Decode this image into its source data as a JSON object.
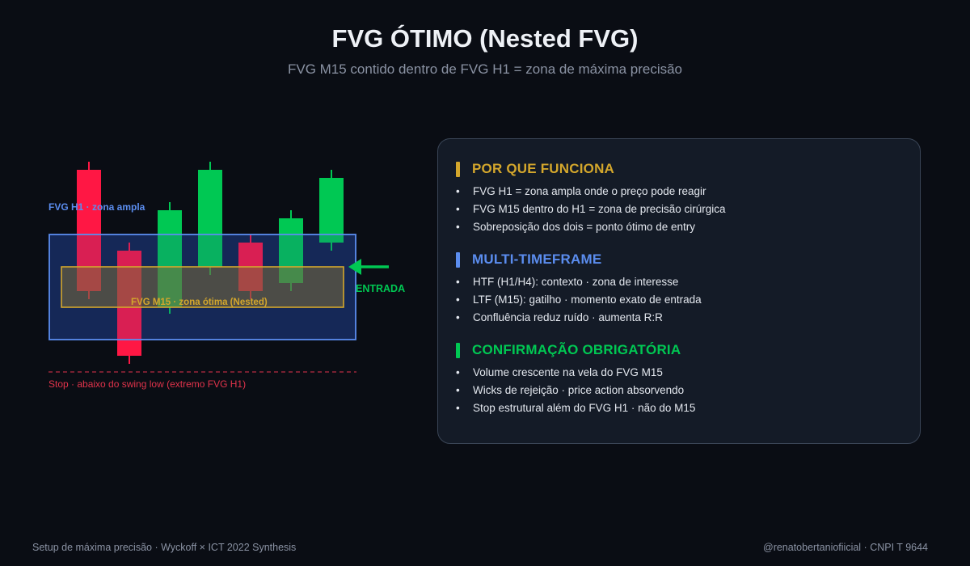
{
  "header": {
    "title": "FVG ÓTIMO (Nested FVG)",
    "subtitle": "FVG M15 contido dentro de FVG H1 = zona de máxima precisão"
  },
  "diagram": {
    "h1_zone_label": "FVG H1 · zona ampla",
    "m15_zone_label": "FVG M15 · zona ótima (Nested)",
    "entry_label": "ENTRADA",
    "stop_label": "Stop · abaixo do swing low (extremo FVG H1)",
    "colors": {
      "bullish": "#00c853",
      "bearish": "#ff1744",
      "h1_zone": "#5b8def",
      "m15_zone": "#d4a72c",
      "entry": "#00c853",
      "stop": "#e2334b"
    },
    "candles": [
      {
        "direction": "bearish",
        "open": 22.0,
        "close": 7.0,
        "high": 23.0,
        "low": 6.0
      },
      {
        "direction": "bearish",
        "open": 12.0,
        "close": -1.0,
        "high": 13.0,
        "low": -2.0
      },
      {
        "direction": "bullish",
        "open": 5.0,
        "close": 17.0,
        "high": 18.0,
        "low": 4.2
      },
      {
        "direction": "bullish",
        "open": 10.0,
        "close": 22.0,
        "high": 23.0,
        "low": 9.0
      },
      {
        "direction": "bearish",
        "open": 13.0,
        "close": 7.0,
        "high": 14.0,
        "low": 6.0
      },
      {
        "direction": "bullish",
        "open": 8.0,
        "close": 16.0,
        "high": 17.0,
        "low": 7.0
      },
      {
        "direction": "bullish",
        "open": 13.0,
        "close": 21.0,
        "high": 22.0,
        "low": 12.0
      }
    ],
    "h1_zone_range": [
      1.0,
      14.0
    ],
    "m15_zone_range": [
      5.0,
      10.0
    ],
    "stop_level": -4.0
  },
  "panel": {
    "sections": [
      {
        "title": "POR QUE FUNCIONA",
        "color": "#d4a72c",
        "bullets": [
          "FVG H1 = zona ampla onde o preço pode reagir",
          "FVG M15 dentro do H1 = zona de precisão cirúrgica",
          "Sobreposição dos dois = ponto ótimo de entry"
        ]
      },
      {
        "title": "MULTI-TIMEFRAME",
        "color": "#5b8def",
        "bullets": [
          "HTF (H1/H4): contexto · zona de interesse",
          "LTF (M15): gatilho · momento exato de entrada",
          "Confluência reduz ruído · aumenta R:R"
        ]
      },
      {
        "title": "CONFIRMAÇÃO OBRIGATÓRIA",
        "color": "#00c853",
        "bullets": [
          "Volume crescente na vela do FVG M15",
          "Wicks de rejeição · price action absorvendo",
          "Stop estrutural além do FVG H1 · não do M15"
        ]
      }
    ]
  },
  "footer": {
    "left": "Setup de máxima precisão · Wyckoff × ICT 2022 Synthesis",
    "right": "@renatobertaniofiicial · CNPI T 9644"
  }
}
